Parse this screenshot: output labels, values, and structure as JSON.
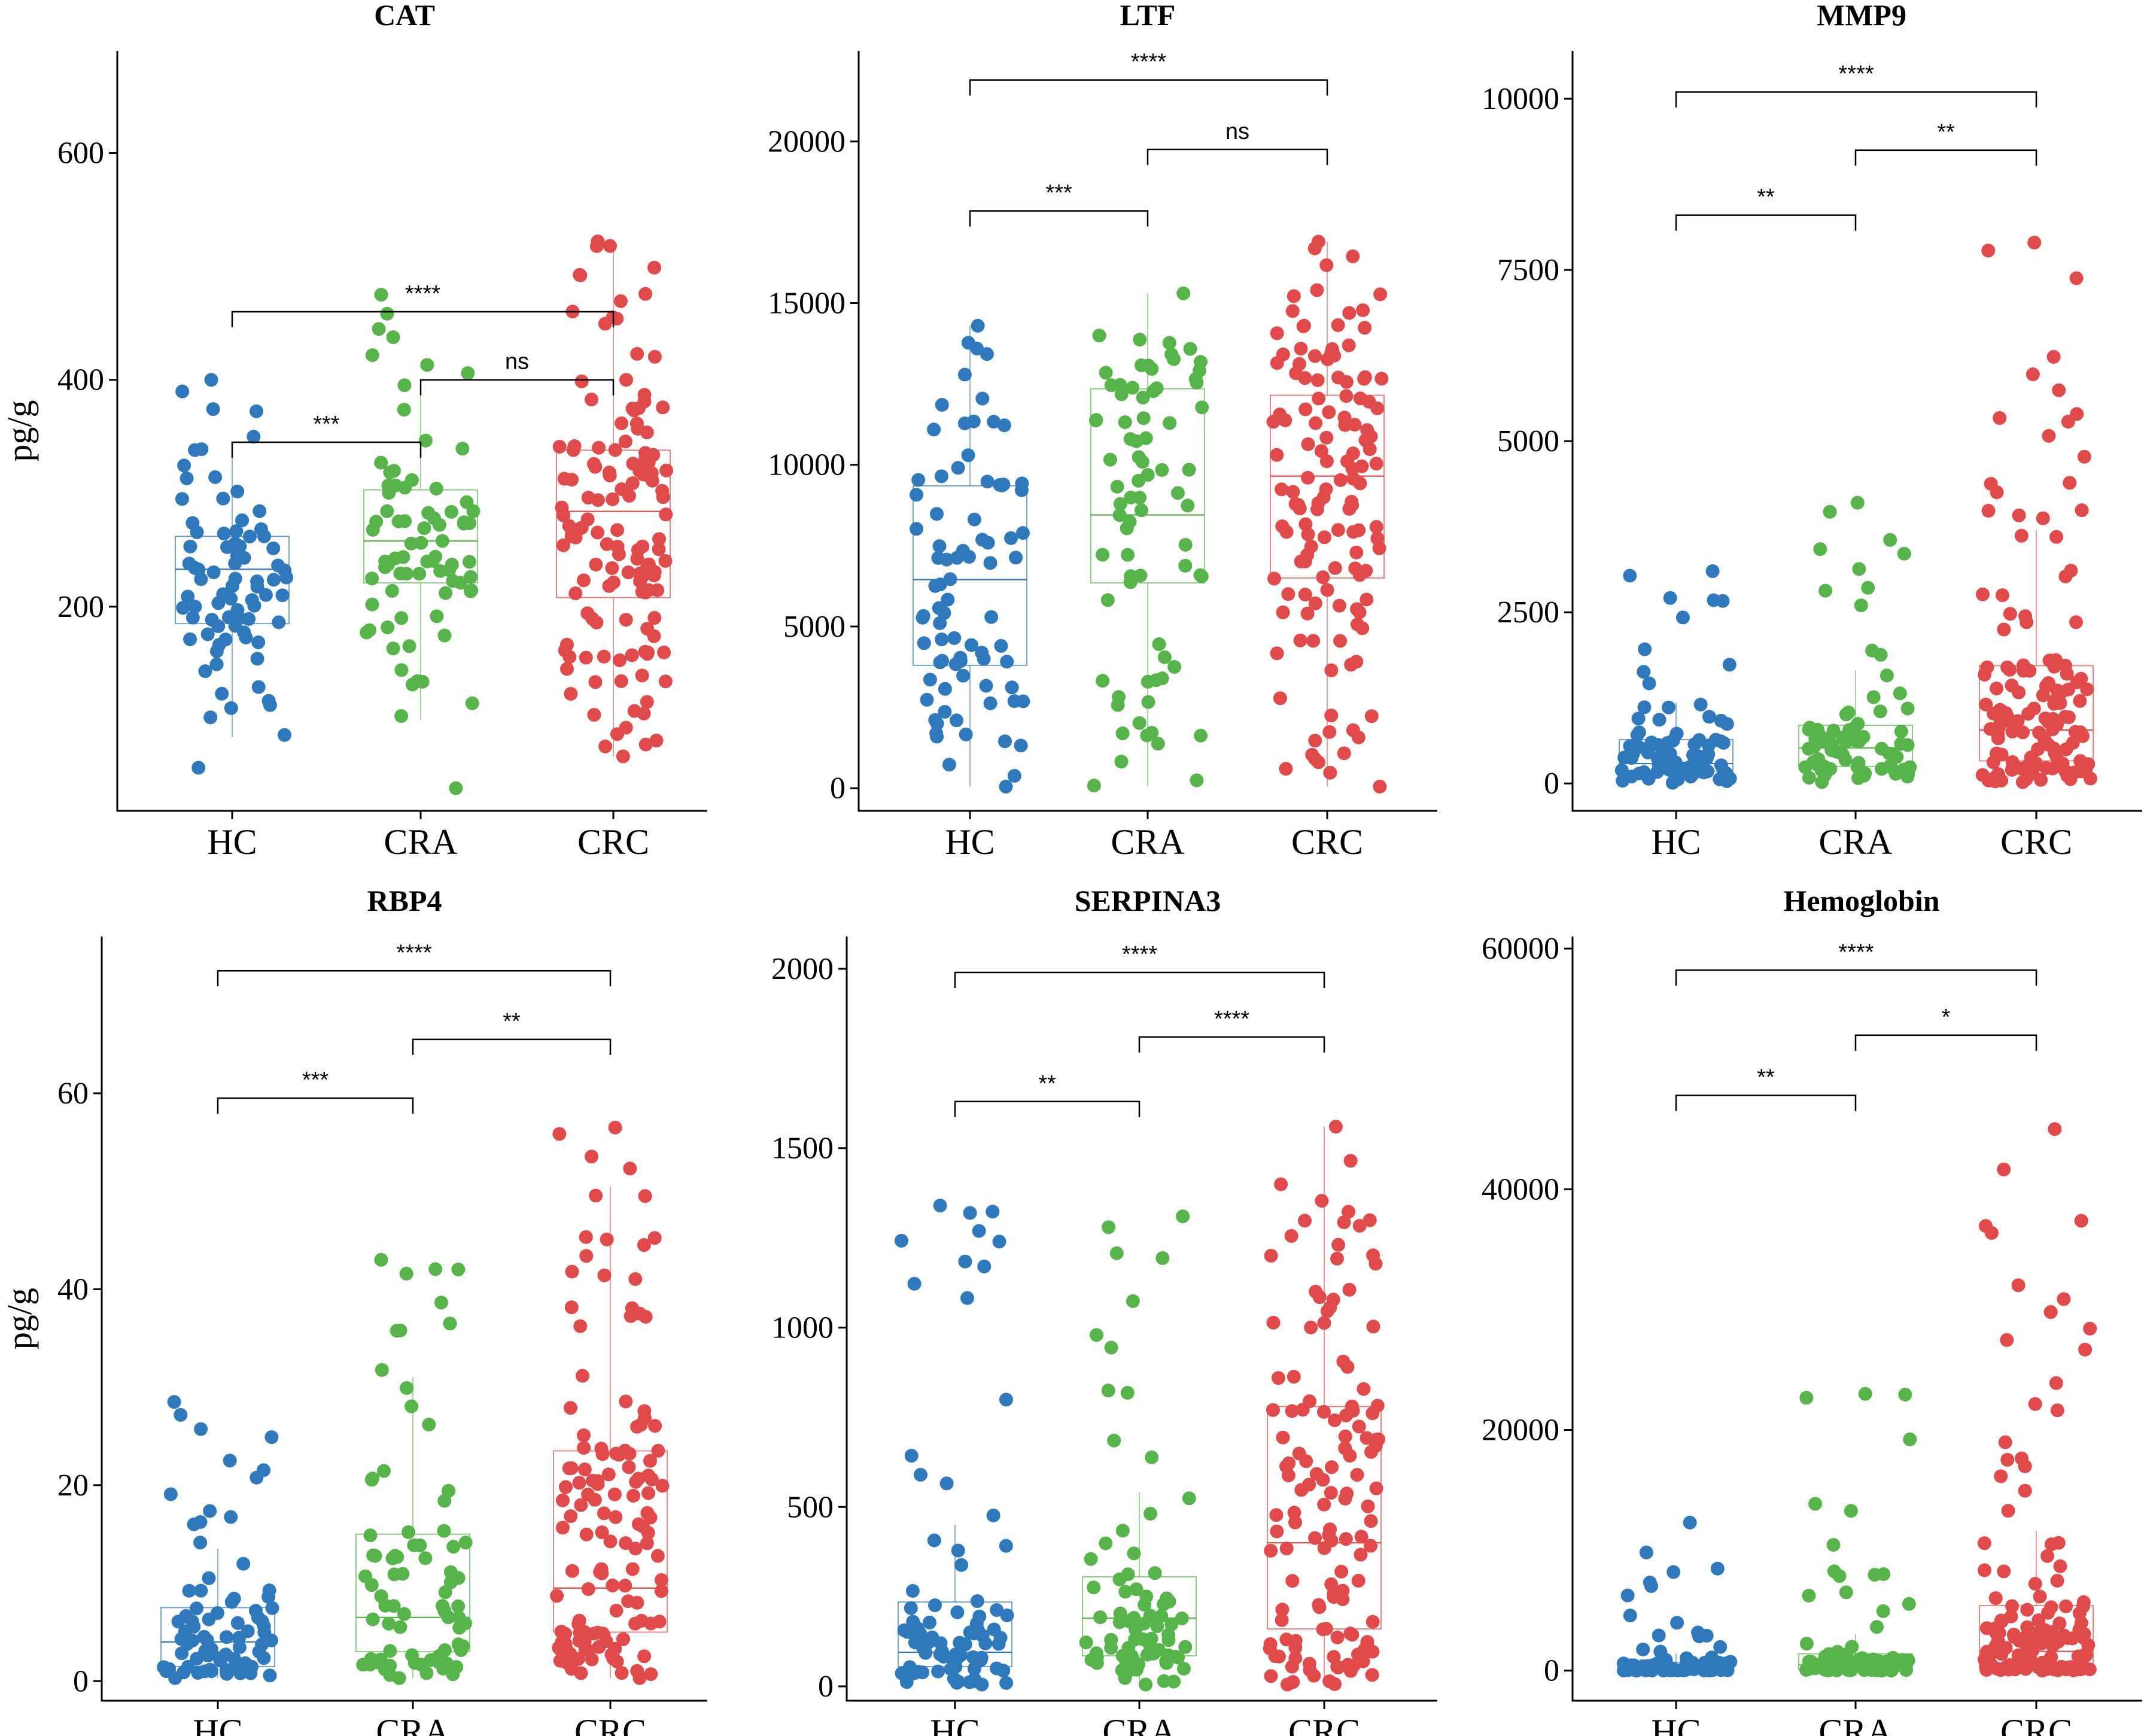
{
  "colors": {
    "HC": "#2f78bc",
    "CRA": "#56b44b",
    "CRC": "#e04a4a"
  },
  "chart_data": [
    {
      "type": "box+jitter",
      "title": "CAT",
      "ylabel": "pg/g",
      "categories": [
        "HC",
        "CRA",
        "CRC"
      ],
      "ylim": [
        20,
        690
      ],
      "yticks": [
        200,
        400,
        600
      ],
      "boxes": [
        {
          "group": "HC",
          "q1": 185,
          "median": 233,
          "q3": 262,
          "whisker_low": 85,
          "whisker_high": 345
        },
        {
          "group": "CRA",
          "q1": 221,
          "median": 258,
          "q3": 303,
          "whisker_low": 100,
          "whisker_high": 392
        },
        {
          "group": "CRC",
          "q1": 208,
          "median": 284,
          "q3": 338,
          "whisker_low": 68,
          "whisker_high": 522
        }
      ],
      "points": {
        "n": [
          80,
          75,
          130
        ],
        "high": [
          400,
          475,
          522
        ],
        "low": [
          58,
          40,
          68
        ]
      },
      "comparisons": [
        {
          "groups": [
            "HC",
            "CRA"
          ],
          "label": "***",
          "y": 345
        },
        {
          "groups": [
            "CRA",
            "CRC"
          ],
          "label": "ns",
          "y": 400
        },
        {
          "groups": [
            "HC",
            "CRC"
          ],
          "label": "****",
          "y": 460
        }
      ]
    },
    {
      "type": "box+jitter",
      "title": "LTF",
      "ylabel": "",
      "categories": [
        "HC",
        "CRA",
        "CRC"
      ],
      "ylim": [
        -700,
        22800
      ],
      "yticks": [
        0,
        5000,
        10000,
        15000,
        20000
      ],
      "boxes": [
        {
          "group": "HC",
          "q1": 3800,
          "median": 6450,
          "q3": 9350,
          "whisker_low": 50,
          "whisker_high": 14300
        },
        {
          "group": "CRA",
          "q1": 6350,
          "median": 8450,
          "q3": 12350,
          "whisker_low": 80,
          "whisker_high": 15300
        },
        {
          "group": "CRC",
          "q1": 6500,
          "median": 9650,
          "q3": 12150,
          "whisker_low": 50,
          "whisker_high": 16900
        }
      ],
      "points": {
        "n": [
          80,
          75,
          130
        ],
        "high": [
          14300,
          15300,
          16900
        ],
        "low": [
          50,
          80,
          50
        ]
      },
      "comparisons": [
        {
          "groups": [
            "HC",
            "CRA"
          ],
          "label": "***",
          "y": 17850
        },
        {
          "groups": [
            "CRA",
            "CRC"
          ],
          "label": "ns",
          "y": 19750
        },
        {
          "groups": [
            "HC",
            "CRC"
          ],
          "label": "****",
          "y": 21900
        }
      ]
    },
    {
      "type": "box+jitter",
      "title": "MMP9",
      "ylabel": "",
      "categories": [
        "HC",
        "CRA",
        "CRC"
      ],
      "ylim": [
        -400,
        10700
      ],
      "yticks": [
        0,
        2500,
        5000,
        7500,
        10000
      ],
      "boxes": [
        {
          "group": "HC",
          "q1": 180,
          "median": 290,
          "q3": 640,
          "whisker_low": 10,
          "whisker_high": 1180
        },
        {
          "group": "CRA",
          "q1": 250,
          "median": 520,
          "q3": 850,
          "whisker_low": 20,
          "whisker_high": 1650
        },
        {
          "group": "CRC",
          "q1": 330,
          "median": 780,
          "q3": 1720,
          "whisker_low": 20,
          "whisker_high": 3700
        }
      ],
      "points": {
        "n": [
          80,
          75,
          130
        ],
        "high": [
          3100,
          4100,
          7900
        ],
        "low": [
          10,
          20,
          20
        ]
      },
      "comparisons": [
        {
          "groups": [
            "HC",
            "CRA"
          ],
          "label": "**",
          "y": 8300
        },
        {
          "groups": [
            "CRA",
            "CRC"
          ],
          "label": "**",
          "y": 9250
        },
        {
          "groups": [
            "HC",
            "CRC"
          ],
          "label": "****",
          "y": 10100
        }
      ]
    },
    {
      "type": "box+jitter",
      "title": "RBP4",
      "ylabel": "pg/g",
      "categories": [
        "HC",
        "CRA",
        "CRC"
      ],
      "ylim": [
        -2,
        76
      ],
      "yticks": [
        0,
        20,
        40,
        60
      ],
      "boxes": [
        {
          "group": "HC",
          "q1": 1.5,
          "median": 4.0,
          "q3": 7.5,
          "whisker_low": 0.3,
          "whisker_high": 13.5
        },
        {
          "group": "CRA",
          "q1": 3.0,
          "median": 6.5,
          "q3": 15.0,
          "whisker_low": 0.3,
          "whisker_high": 31
        },
        {
          "group": "CRC",
          "q1": 5.0,
          "median": 9.5,
          "q3": 23.5,
          "whisker_low": 0.3,
          "whisker_high": 50.5
        }
      ],
      "points": {
        "n": [
          80,
          75,
          130
        ],
        "high": [
          28.5,
          43,
          56.5
        ],
        "low": [
          0.3,
          0.3,
          0.3
        ]
      },
      "comparisons": [
        {
          "groups": [
            "HC",
            "CRA"
          ],
          "label": "***",
          "y": 59.5
        },
        {
          "groups": [
            "CRA",
            "CRC"
          ],
          "label": "**",
          "y": 65.5
        },
        {
          "groups": [
            "HC",
            "CRC"
          ],
          "label": "****",
          "y": 72.5
        }
      ]
    },
    {
      "type": "box+jitter",
      "title": "SERPINA3",
      "ylabel": "",
      "categories": [
        "HC",
        "CRA",
        "CRC"
      ],
      "ylim": [
        -40,
        2090
      ],
      "yticks": [
        0,
        500,
        1000,
        1500,
        2000
      ],
      "boxes": [
        {
          "group": "HC",
          "q1": 55,
          "median": 95,
          "q3": 235,
          "whisker_low": 5,
          "whisker_high": 450
        },
        {
          "group": "CRA",
          "q1": 85,
          "median": 190,
          "q3": 305,
          "whisker_low": 5,
          "whisker_high": 540
        },
        {
          "group": "CRC",
          "q1": 160,
          "median": 400,
          "q3": 780,
          "whisker_low": 5,
          "whisker_high": 1560
        }
      ],
      "points": {
        "n": [
          80,
          75,
          130
        ],
        "high": [
          1340,
          1310,
          1560
        ],
        "low": [
          5,
          5,
          5
        ]
      },
      "comparisons": [
        {
          "groups": [
            "HC",
            "CRA"
          ],
          "label": "**",
          "y": 1630
        },
        {
          "groups": [
            "CRA",
            "CRC"
          ],
          "label": "****",
          "y": 1810
        },
        {
          "groups": [
            "HC",
            "CRC"
          ],
          "label": "****",
          "y": 1990
        }
      ]
    },
    {
      "type": "box+jitter",
      "title": "Hemoglobin",
      "ylabel": "",
      "categories": [
        "HC",
        "CRA",
        "CRC"
      ],
      "ylim": [
        -2500,
        61000
      ],
      "yticks": [
        0,
        20000,
        40000,
        60000
      ],
      "boxes": [
        {
          "group": "HC",
          "q1": 50,
          "median": 200,
          "q3": 700,
          "whisker_low": 0,
          "whisker_high": 1400
        },
        {
          "group": "CRA",
          "q1": 100,
          "median": 500,
          "q3": 1400,
          "whisker_low": 0,
          "whisker_high": 3000
        },
        {
          "group": "CRC",
          "q1": 300,
          "median": 1600,
          "q3": 5400,
          "whisker_low": 0,
          "whisker_high": 11600
        }
      ],
      "points": {
        "n": [
          80,
          75,
          130
        ],
        "high": [
          12300,
          23000,
          45000
        ],
        "low": [
          0,
          0,
          0
        ]
      },
      "comparisons": [
        {
          "groups": [
            "HC",
            "CRA"
          ],
          "label": "**",
          "y": 47800
        },
        {
          "groups": [
            "CRA",
            "CRC"
          ],
          "label": "*",
          "y": 52800
        },
        {
          "groups": [
            "HC",
            "CRC"
          ],
          "label": "****",
          "y": 58200
        }
      ]
    }
  ]
}
